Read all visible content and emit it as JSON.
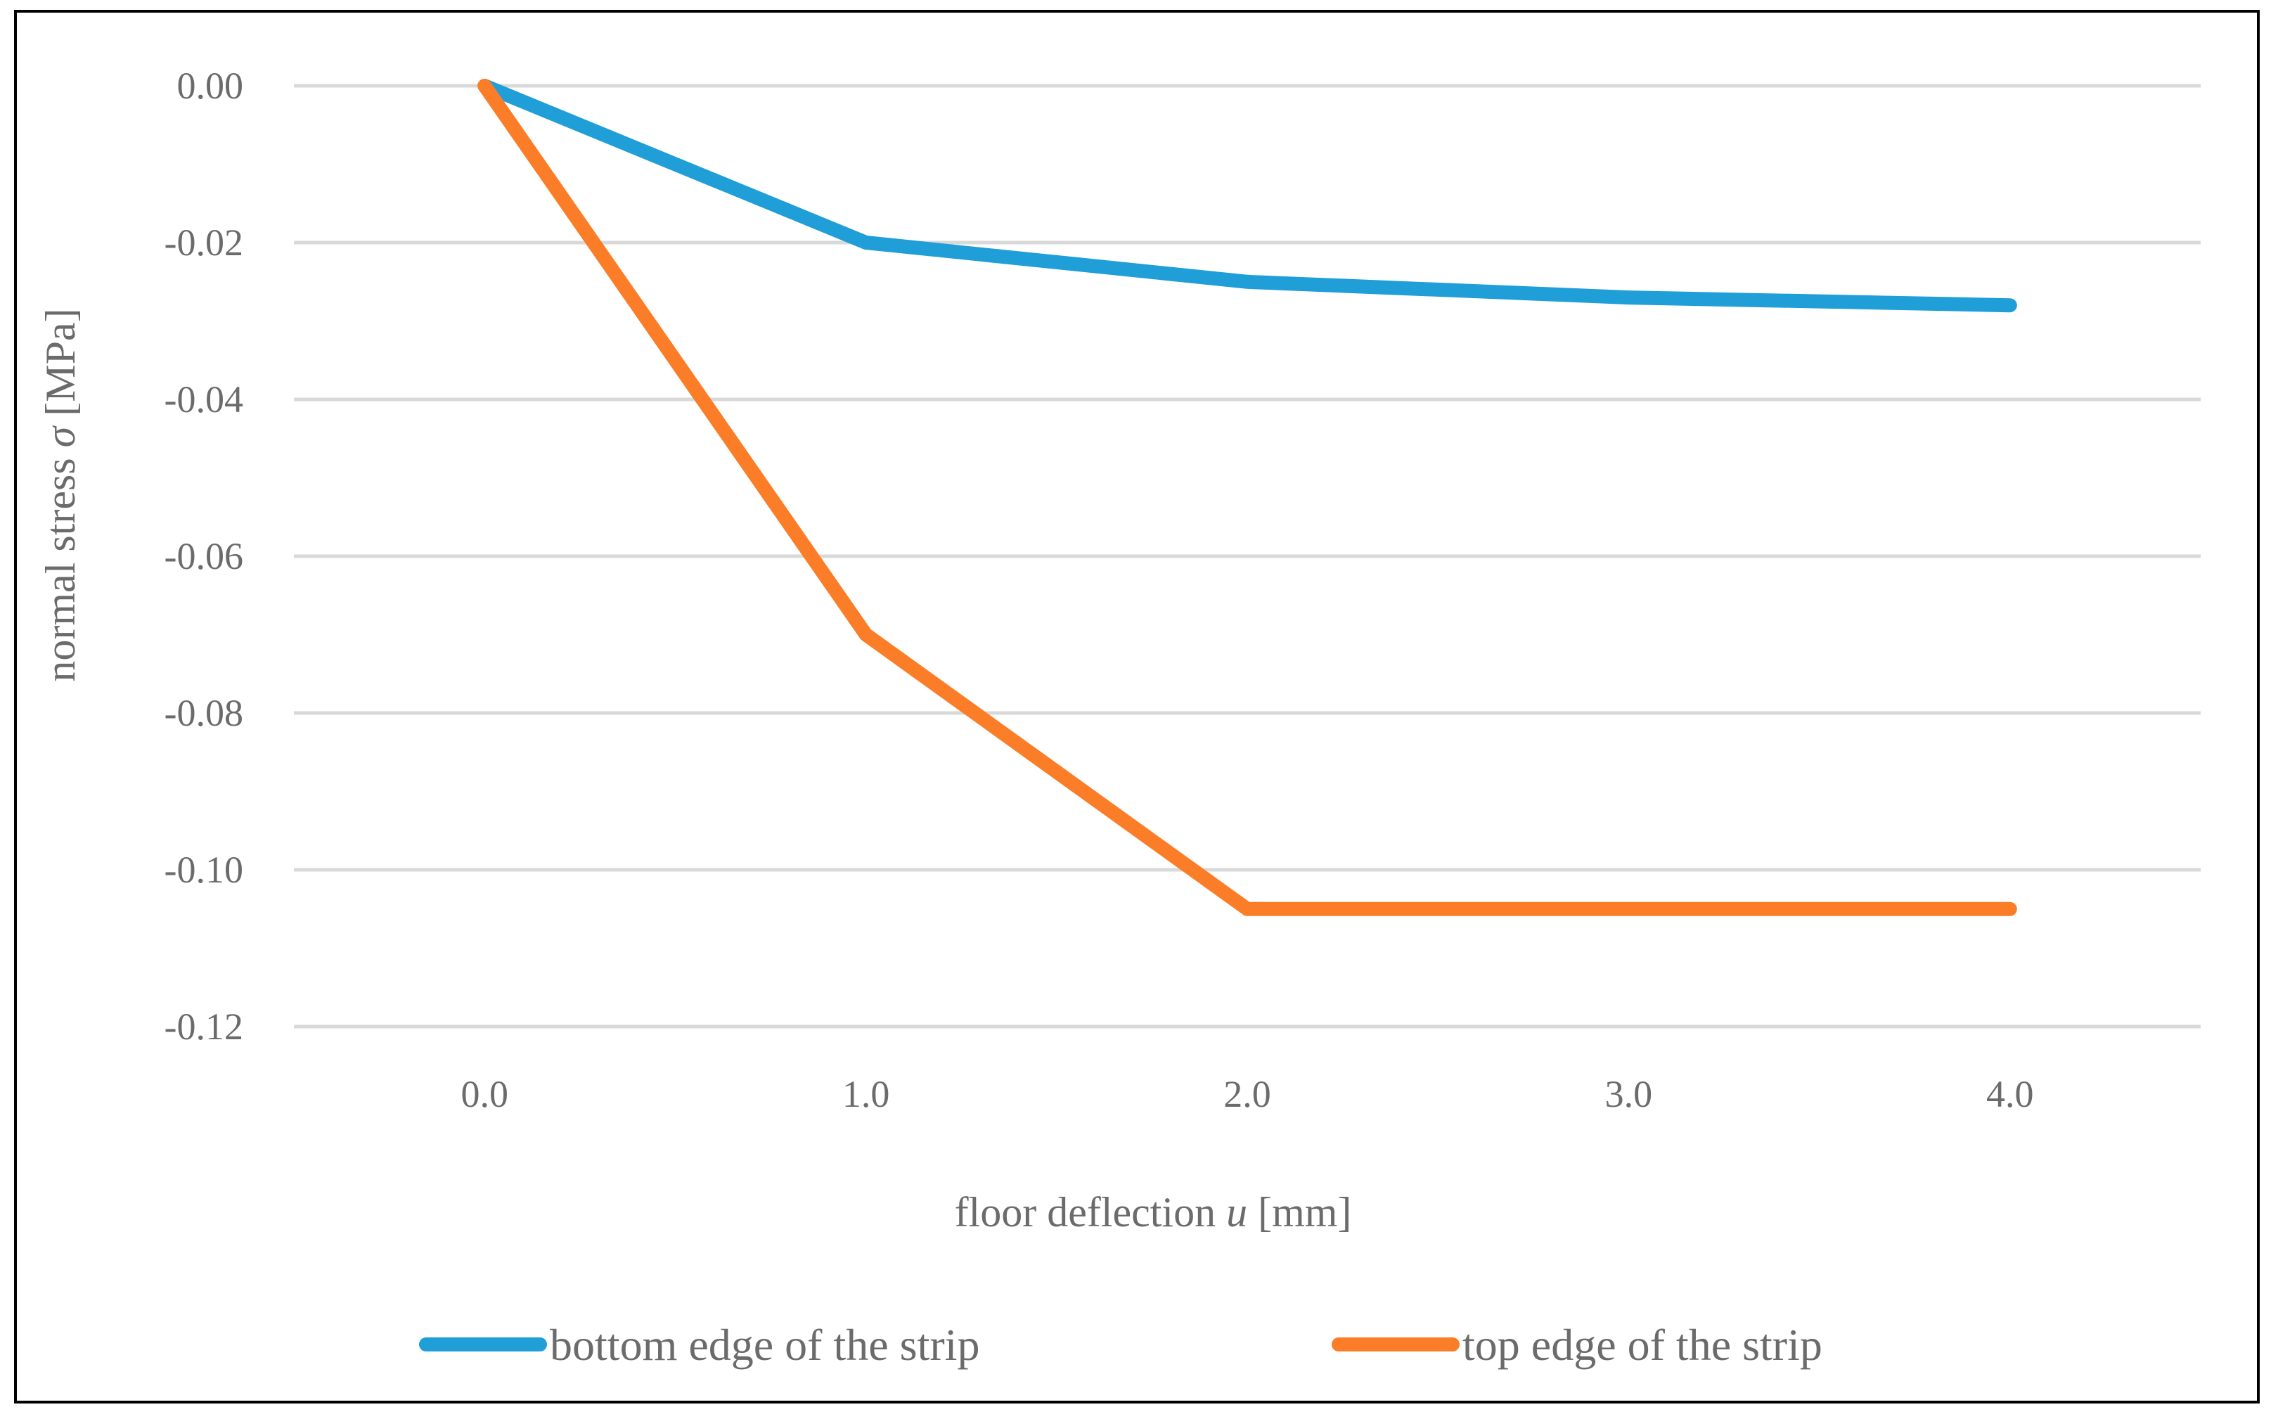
{
  "chart_data": {
    "type": "line",
    "title": "",
    "x": [
      0.0,
      1.0,
      2.0,
      3.0,
      4.0
    ],
    "x_tick_labels": [
      "0.0",
      "1.0",
      "2.0",
      "3.0",
      "4.0"
    ],
    "xlim": [
      -0.5,
      4.5
    ],
    "ylim": [
      -0.12,
      0.0
    ],
    "y_ticks": [
      0.0,
      -0.02,
      -0.04,
      -0.06,
      -0.08,
      -0.1,
      -0.12
    ],
    "y_tick_labels": [
      "0.00",
      "-0.02",
      "-0.04",
      "-0.06",
      "-0.08",
      "-0.10",
      "-0.12"
    ],
    "xlabel": {
      "prefix": "floor deflection ",
      "symbol": "u",
      "suffix": " [mm]"
    },
    "ylabel": {
      "prefix": "normal stress ",
      "symbol": "σ",
      "suffix": " [MPa]"
    },
    "grid": "horizontal",
    "legend_position": "bottom",
    "series": [
      {
        "name": "bottom edge of the strip",
        "color": "#1f9ed8",
        "values": [
          0.0,
          -0.02,
          -0.025,
          -0.027,
          -0.028
        ]
      },
      {
        "name": "top edge of the strip",
        "color": "#fb7d28",
        "values": [
          0.0,
          -0.07,
          -0.105,
          -0.105,
          -0.105
        ]
      }
    ]
  }
}
